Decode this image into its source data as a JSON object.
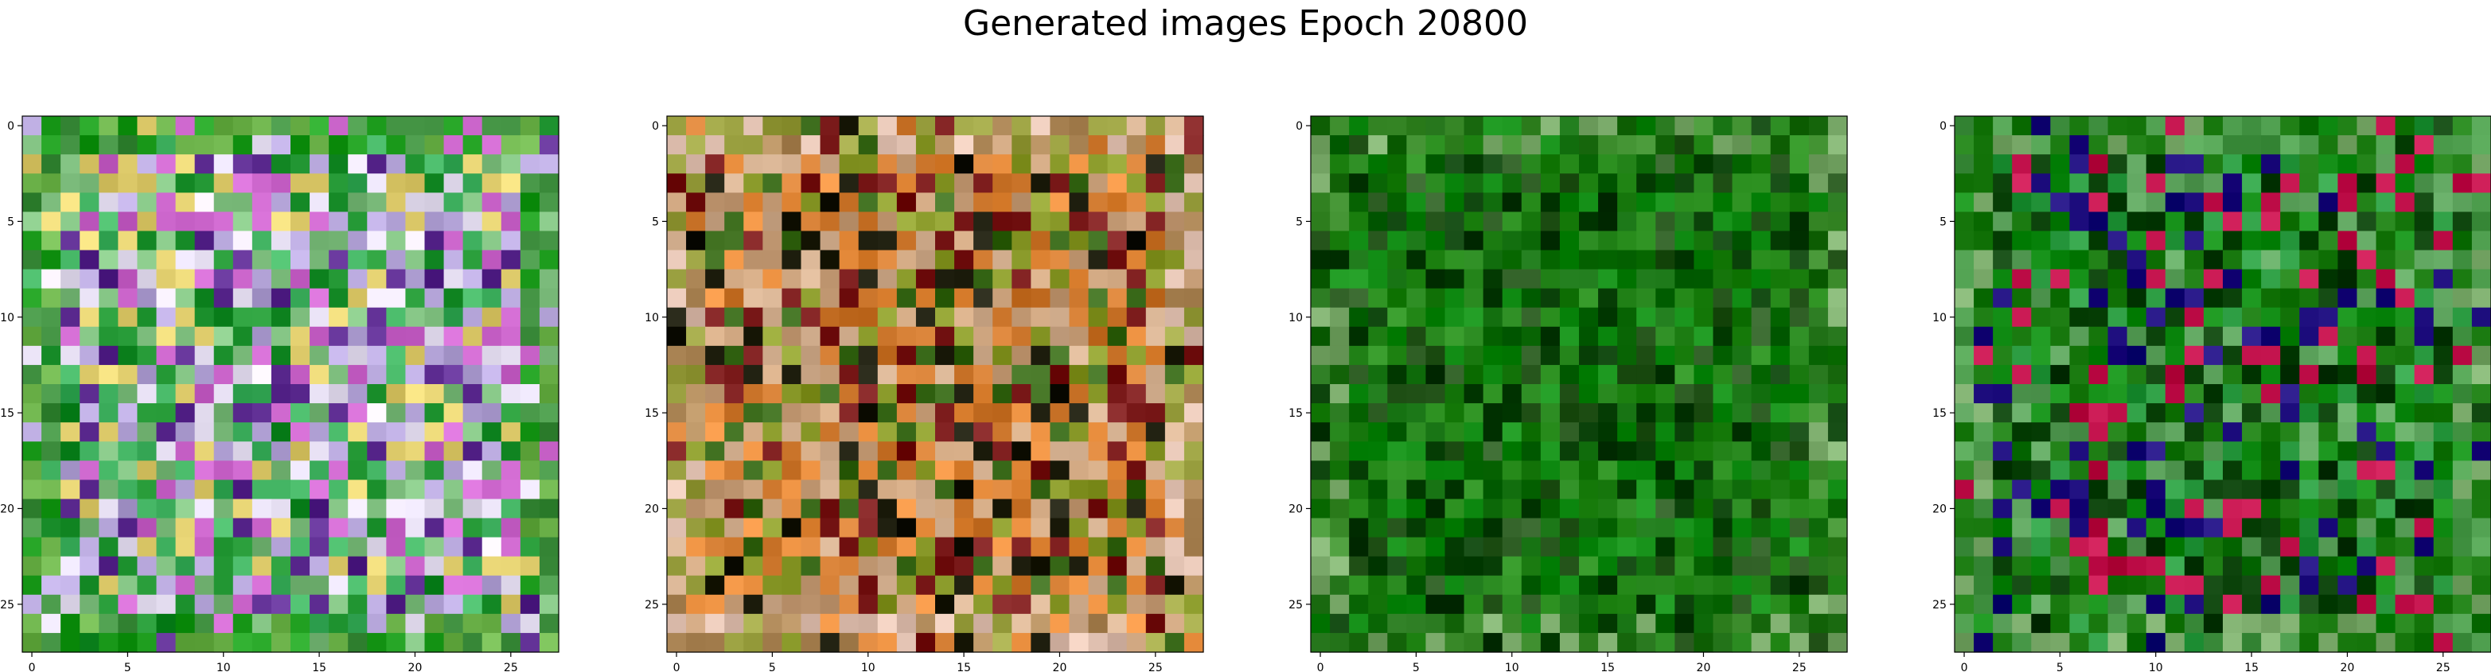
{
  "figure": {
    "title": "Generated images Epoch 20800"
  },
  "chart_data": {
    "type": "heatmap",
    "title": "Generated images Epoch 20800",
    "panel_count": 4,
    "image_shape": [
      28,
      28,
      3
    ],
    "xlim": [
      -0.5,
      27.5
    ],
    "ylim": [
      27.5,
      -0.5
    ],
    "x_ticks": [
      0,
      5,
      10,
      15,
      20,
      25
    ],
    "y_ticks": [
      0,
      5,
      10,
      15,
      20,
      25
    ],
    "grid": false,
    "panels": [
      {
        "index": 0,
        "dominant_colors": [
          "#7fbf7f",
          "#b4a4d8",
          "#3fb05f",
          "#cc66cc",
          "#e9e2f5",
          "#1b8f2c",
          "#5b2a8f",
          "#e3d070"
        ],
        "edge_colors": [
          "#3f8f3f",
          "#6cb24a",
          "#1f9e1f"
        ]
      },
      {
        "index": 1,
        "dominant_colors": [
          "#c9a07a",
          "#8a9a2a",
          "#3a6a1a",
          "#d07a30",
          "#7a1a1a",
          "#d4b090",
          "#1a1a0a",
          "#e58a3a"
        ],
        "edge_colors": [
          "#b08a5a",
          "#9aa040",
          "#e0c0b0"
        ]
      },
      {
        "index": 2,
        "dominant_colors": [
          "#1a7a10",
          "#0e6a0a",
          "#268a1a",
          "#063d05",
          "#2a5a20",
          "#0f8a12"
        ],
        "edge_colors": [
          "#3a8a2a",
          "#7aaa6a",
          "#1a6a10"
        ]
      },
      {
        "index": 3,
        "dominant_colors": [
          "#0f8a12",
          "#1a7a10",
          "#063d05",
          "#2a9a40",
          "#1a0a7a",
          "#c0104a",
          "#5aa05a"
        ],
        "edge_colors": [
          "#4a9a4a",
          "#7aaa6a",
          "#1a7a10"
        ]
      }
    ]
  }
}
